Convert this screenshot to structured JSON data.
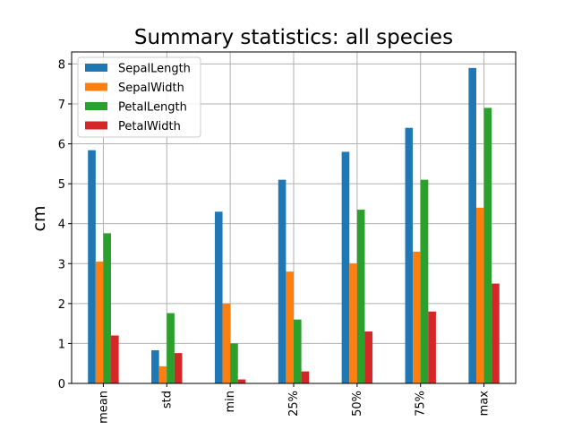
{
  "chart_data": {
    "type": "bar",
    "title": "Summary statistics: all species",
    "xlabel": "",
    "ylabel": "cm",
    "categories": [
      "mean",
      "std",
      "min",
      "25%",
      "50%",
      "75%",
      "max"
    ],
    "series": [
      {
        "name": "SepalLength",
        "color": "#1f77b4",
        "values": [
          5.84,
          0.83,
          4.3,
          5.1,
          5.8,
          6.4,
          7.9
        ]
      },
      {
        "name": "SepalWidth",
        "color": "#ff7f0e",
        "values": [
          3.05,
          0.43,
          2.0,
          2.8,
          3.0,
          3.3,
          4.4
        ]
      },
      {
        "name": "PetalLength",
        "color": "#2ca02c",
        "values": [
          3.76,
          1.76,
          1.0,
          1.6,
          4.35,
          5.1,
          6.9
        ]
      },
      {
        "name": "PetalWidth",
        "color": "#d62728",
        "values": [
          1.2,
          0.76,
          0.1,
          0.3,
          1.3,
          1.8,
          2.5
        ]
      }
    ],
    "ylim": [
      0,
      8.3
    ],
    "yticks": [
      0,
      1,
      2,
      3,
      4,
      5,
      6,
      7,
      8
    ],
    "grid": true,
    "legend_position": "top-left"
  }
}
